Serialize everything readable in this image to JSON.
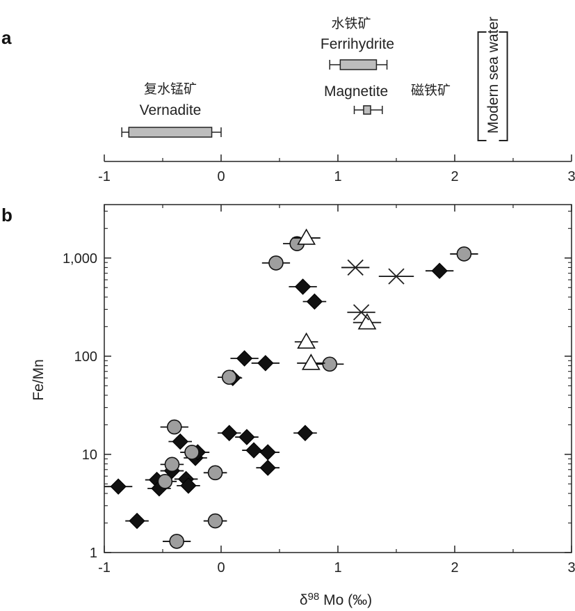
{
  "chart_data": [
    {
      "panel": "a",
      "type": "box",
      "xlim": [
        -1,
        3
      ],
      "xticks": [
        "-1",
        "0",
        "1",
        "2",
        "3"
      ],
      "boxes": [
        {
          "name": "Vernadite",
          "name_cn": "复水锰矿",
          "whisker_low": -0.85,
          "q1": -0.79,
          "q3": -0.08,
          "whisker_high": 0.0,
          "fill": "#bdbdbd"
        },
        {
          "name": "Ferrihydrite",
          "name_cn": "水铁矿",
          "whisker_low": 0.93,
          "q1": 1.02,
          "q3": 1.33,
          "whisker_high": 1.42,
          "fill": "#bdbdbd"
        },
        {
          "name": "Magnetite",
          "name_cn": "磁铁矿",
          "whisker_low": 1.14,
          "q1": 1.22,
          "q3": 1.28,
          "whisker_high": 1.38,
          "fill": "#bdbdbd"
        }
      ],
      "bracket": {
        "label": "Modern sea water",
        "low": 2.2,
        "high": 2.45
      }
    },
    {
      "panel": "b",
      "type": "scatter",
      "xlabel": "δ98 Mo (‰)",
      "xlabel_parts": {
        "delta": "δ",
        "sup": "98",
        "rest": " Mo (‰)"
      },
      "ylabel": "Fe/Mn",
      "xlim": [
        -1,
        3
      ],
      "ylim": [
        1,
        3500
      ],
      "yscale": "log",
      "xticks": [
        "-1",
        "0",
        "1",
        "2",
        "3"
      ],
      "yticks": [
        {
          "value": 1,
          "label": "1"
        },
        {
          "value": 10,
          "label": "10"
        },
        {
          "value": 100,
          "label": "100"
        },
        {
          "value": 1000,
          "label": "1,000"
        }
      ],
      "colors": {
        "diamond": "#111111",
        "circle": "#9e9e9e",
        "triangle": "#ffffff",
        "cross": "#222222"
      },
      "series": [
        {
          "name": "diamonds",
          "marker": "diamond",
          "x": [
            -0.88,
            -0.72,
            -0.55,
            -0.53,
            -0.42,
            -0.35,
            -0.3,
            -0.28,
            -0.22,
            -0.2,
            0.07,
            0.1,
            0.2,
            0.22,
            0.28,
            0.38,
            0.4,
            0.4,
            0.7,
            0.72,
            0.8,
            1.87
          ],
          "y": [
            4.7,
            2.1,
            5.5,
            4.5,
            6.8,
            13.5,
            5.6,
            4.8,
            9.2,
            10.5,
            16.5,
            60,
            95,
            15,
            11,
            85,
            7.3,
            10.5,
            510,
            16.5,
            360,
            740
          ],
          "xerr": [
            0.12,
            0.1,
            0.1,
            0.1,
            0.1,
            0.1,
            0.1,
            0.1,
            0.1,
            0.1,
            0.1,
            0.08,
            0.12,
            0.1,
            0.1,
            0.12,
            0.1,
            0.1,
            0.12,
            0.1,
            0.1,
            0.12
          ]
        },
        {
          "name": "circles",
          "marker": "circle",
          "x": [
            -0.48,
            -0.42,
            -0.4,
            -0.38,
            -0.25,
            -0.05,
            -0.05,
            0.07,
            0.47,
            0.65,
            0.93,
            2.08
          ],
          "y": [
            5.3,
            7.9,
            19,
            1.3,
            10.5,
            6.5,
            2.1,
            61,
            890,
            1400,
            83,
            1100
          ],
          "xerr": [
            0.1,
            0.1,
            0.12,
            0.12,
            0.1,
            0.1,
            0.1,
            0.1,
            0.12,
            0.12,
            0.12,
            0.12
          ]
        },
        {
          "name": "triangles",
          "marker": "triangle",
          "x": [
            0.73,
            0.73,
            0.77,
            1.25
          ],
          "y": [
            1600,
            140,
            85,
            220
          ],
          "xerr": [
            0.12,
            0.1,
            0.12,
            0.12
          ]
        },
        {
          "name": "crosses",
          "marker": "cross",
          "x": [
            1.15,
            1.5,
            1.2
          ],
          "y": [
            800,
            650,
            280
          ],
          "xerr": [
            0.12,
            0.15,
            0.12
          ]
        }
      ]
    }
  ]
}
